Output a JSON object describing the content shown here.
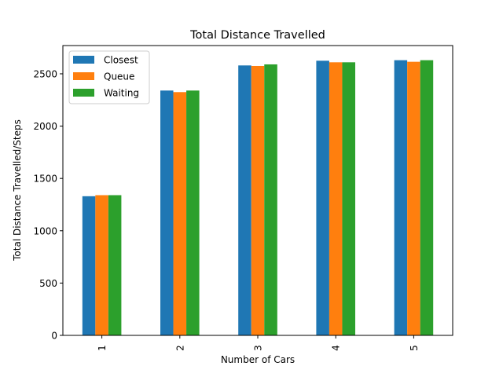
{
  "chart_data": {
    "type": "bar",
    "title": "Total Distance Travelled",
    "xlabel": "Number of Cars",
    "ylabel": "Total Distance Travelled/Steps",
    "categories": [
      "1",
      "2",
      "3",
      "4",
      "5"
    ],
    "ylim": [
      0,
      2770
    ],
    "yticks": [
      0,
      500,
      1000,
      1500,
      2000,
      2500
    ],
    "grid": false,
    "legend_position": "top-left",
    "series": [
      {
        "name": "Closest",
        "color": "#1f77b4",
        "values": [
          1330,
          2340,
          2580,
          2625,
          2630
        ]
      },
      {
        "name": "Queue",
        "color": "#ff7f0e",
        "values": [
          1340,
          2325,
          2575,
          2610,
          2615
        ]
      },
      {
        "name": "Waiting",
        "color": "#2ca02c",
        "values": [
          1340,
          2340,
          2590,
          2610,
          2630
        ]
      }
    ]
  }
}
